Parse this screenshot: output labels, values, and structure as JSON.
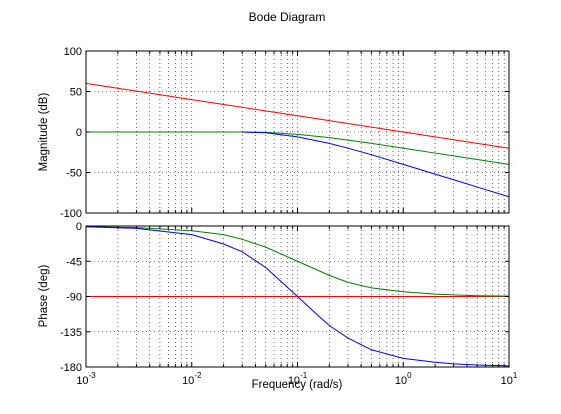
{
  "chart_data": [
    {
      "type": "line",
      "title": "Bode Diagram",
      "ylabel": "Magnitude (dB)",
      "xscale": "log",
      "xlim": [
        0.001,
        10
      ],
      "ylim": [
        -100,
        100
      ],
      "yticks": [
        100,
        50,
        0,
        -50,
        -100
      ],
      "grid": true,
      "series": [
        {
          "color": "#ff0000",
          "x": [
            0.001,
            0.01,
            0.1,
            1,
            10
          ],
          "y": [
            60,
            40,
            20,
            0,
            -20
          ]
        },
        {
          "color": "#008000",
          "x": [
            0.001,
            0.01,
            0.03,
            0.05,
            0.1,
            0.2,
            0.3,
            0.5,
            1,
            2,
            3,
            5,
            10
          ],
          "y": [
            0,
            0,
            0,
            -0.5,
            -3,
            -7,
            -10,
            -14,
            -20,
            -26,
            -29.5,
            -34,
            -40
          ]
        },
        {
          "color": "#0000ff",
          "x": [
            0.03,
            0.05,
            0.1,
            0.2,
            0.3,
            0.5,
            1,
            2,
            3,
            5,
            10
          ],
          "y": [
            0,
            -1,
            -6,
            -14,
            -20,
            -28,
            -40,
            -52,
            -59,
            -68,
            -80
          ]
        }
      ]
    },
    {
      "type": "line",
      "ylabel": "Phase (deg)",
      "xlabel": "Frequency (rad/s)",
      "xscale": "log",
      "xlim": [
        0.001,
        10
      ],
      "ylim": [
        -180,
        0
      ],
      "yticks": [
        0,
        -45,
        -90,
        -135,
        -180
      ],
      "xtick_base": "10",
      "xtick_exponents": [
        "-3",
        "-2",
        "-1",
        "0",
        "1"
      ],
      "grid": true,
      "series": [
        {
          "color": "#ff0000",
          "x": [
            0.001,
            10
          ],
          "y": [
            -90,
            -90
          ]
        },
        {
          "color": "#008000",
          "x": [
            0.001,
            0.003,
            0.01,
            0.02,
            0.03,
            0.05,
            0.1,
            0.2,
            0.3,
            0.5,
            1,
            2,
            3,
            5,
            10
          ],
          "y": [
            -1,
            -2,
            -6,
            -11,
            -17,
            -27,
            -45,
            -63,
            -72,
            -79,
            -84,
            -87,
            -88,
            -89,
            -89.5
          ]
        },
        {
          "color": "#0000ff",
          "x": [
            0.001,
            0.003,
            0.01,
            0.02,
            0.03,
            0.05,
            0.07,
            0.1,
            0.15,
            0.2,
            0.3,
            0.5,
            1,
            2,
            3,
            5,
            10
          ],
          "y": [
            -1,
            -3,
            -11,
            -23,
            -33,
            -53,
            -71,
            -90,
            -112,
            -127,
            -143,
            -158,
            -169,
            -174,
            -176,
            -177.5,
            -178.5
          ]
        }
      ]
    }
  ]
}
